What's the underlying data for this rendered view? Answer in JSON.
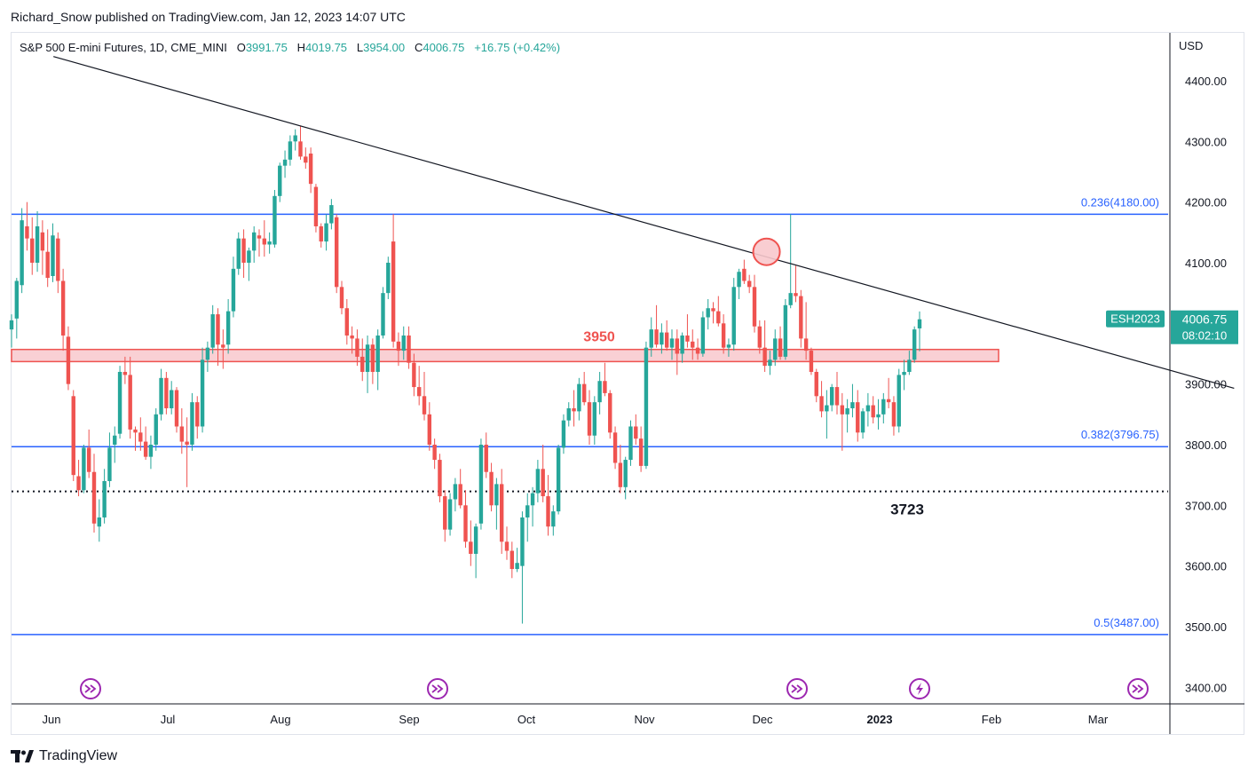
{
  "header": {
    "publisher": "Richard_Snow published on TradingView.com, Jan 12, 2023 14:07 UTC"
  },
  "legend": {
    "symbol": "S&P 500 E-mini Futures, 1D, CME_MINI",
    "open_label": "O",
    "open": "3991.75",
    "high_label": "H",
    "high": "4019.75",
    "low_label": "L",
    "low": "3954.00",
    "close_label": "C",
    "close": "4006.75",
    "change": "+16.75 (+0.42%)"
  },
  "footer": {
    "brand": "TradingView"
  },
  "colors": {
    "up": "#26a69a",
    "down": "#ef5350",
    "level_line": "#2962ff",
    "zone_fill": "#f8c8cc",
    "zone_border": "#ef5350",
    "trendline": "#131722",
    "event_icon": "#9c27b0",
    "price_tag": "#26a69a"
  },
  "chart_data": {
    "type": "candlestick",
    "currency": "USD",
    "ylim": [
      3350,
      4460
    ],
    "y_ticks": [
      "3400.00",
      "3500.00",
      "3600.00",
      "3700.00",
      "3800.00",
      "3900.00",
      "4000.00",
      "4100.00",
      "4200.00",
      "4300.00",
      "4400.00"
    ],
    "x_ticks": [
      "Jun",
      "Jul",
      "Aug",
      "Sep",
      "Oct",
      "Nov",
      "Dec",
      "2023",
      "Feb",
      "Mar"
    ],
    "last_price": {
      "symbol": "ESH2023",
      "value": "4006.75",
      "countdown": "08:02:10"
    },
    "fib_levels": [
      {
        "label": "0.236(4180.00)",
        "value": 4180.0
      },
      {
        "label": "0.382(3796.75)",
        "value": 3796.75
      },
      {
        "label": "0.5(3487.00)",
        "value": 3487.0
      }
    ],
    "support_zone": {
      "label": "3950",
      "low": 3937,
      "high": 3957
    },
    "dotted_level": {
      "label": "3723",
      "value": 3723
    },
    "trendline": {
      "from": [
        "2022-05-31",
        4440
      ],
      "to": [
        "2023-03-30",
        3893
      ]
    },
    "marker_circle": {
      "date": "2022-11-30",
      "value": 4118
    },
    "event_icons": [
      "dividend",
      "dividend",
      "dividend",
      "earnings",
      "dividend"
    ],
    "candles": [
      [
        3990,
        4015,
        3960,
        4005
      ],
      [
        4008,
        4075,
        3975,
        4070
      ],
      [
        4063,
        4190,
        4050,
        4170
      ],
      [
        4160,
        4200,
        4120,
        4140
      ],
      [
        4140,
        4175,
        4080,
        4100
      ],
      [
        4100,
        4185,
        4085,
        4160
      ],
      [
        4150,
        4170,
        4080,
        4120
      ],
      [
        4118,
        4155,
        4060,
        4075
      ],
      [
        4078,
        4165,
        4068,
        4145
      ],
      [
        4140,
        4150,
        4050,
        4070
      ],
      [
        4070,
        4090,
        3955,
        3980
      ],
      [
        3978,
        3995,
        3890,
        3900
      ],
      [
        3880,
        3890,
        3740,
        3750
      ],
      [
        3748,
        3775,
        3715,
        3725
      ],
      [
        3725,
        3800,
        3720,
        3795
      ],
      [
        3795,
        3825,
        3745,
        3755
      ],
      [
        3755,
        3785,
        3655,
        3670
      ],
      [
        3665,
        3710,
        3640,
        3680
      ],
      [
        3680,
        3760,
        3670,
        3740
      ],
      [
        3740,
        3820,
        3730,
        3795
      ],
      [
        3800,
        3830,
        3770,
        3815
      ],
      [
        3818,
        3930,
        3810,
        3920
      ],
      [
        3920,
        3945,
        3900,
        3915
      ],
      [
        3915,
        3945,
        3810,
        3825
      ],
      [
        3825,
        3830,
        3790,
        3820
      ],
      [
        3820,
        3845,
        3790,
        3805
      ],
      [
        3805,
        3830,
        3775,
        3780
      ],
      [
        3780,
        3815,
        3760,
        3800
      ],
      [
        3800,
        3860,
        3790,
        3850
      ],
      [
        3850,
        3925,
        3840,
        3910
      ],
      [
        3910,
        3920,
        3850,
        3860
      ],
      [
        3860,
        3905,
        3850,
        3890
      ],
      [
        3890,
        3895,
        3820,
        3830
      ],
      [
        3830,
        3860,
        3785,
        3805
      ],
      [
        3805,
        3845,
        3730,
        3800
      ],
      [
        3800,
        3885,
        3790,
        3870
      ],
      [
        3870,
        3880,
        3810,
        3830
      ],
      [
        3830,
        3960,
        3820,
        3940
      ],
      [
        3940,
        3970,
        3920,
        3960
      ],
      [
        3960,
        4030,
        3950,
        4015
      ],
      [
        4015,
        4025,
        3930,
        3965
      ],
      [
        3965,
        3990,
        3925,
        3960
      ],
      [
        3965,
        4040,
        3950,
        4020
      ],
      [
        4020,
        4110,
        4010,
        4090
      ],
      [
        4090,
        4150,
        4080,
        4140
      ],
      [
        4140,
        4155,
        4075,
        4100
      ],
      [
        4100,
        4125,
        4070,
        4120
      ],
      [
        4120,
        4160,
        4100,
        4150
      ],
      [
        4145,
        4155,
        4110,
        4140
      ],
      [
        4140,
        4170,
        4110,
        4130
      ],
      [
        4130,
        4150,
        4115,
        4135
      ],
      [
        4130,
        4220,
        4125,
        4210
      ],
      [
        4210,
        4265,
        4200,
        4260
      ],
      [
        4260,
        4285,
        4240,
        4270
      ],
      [
        4270,
        4310,
        4260,
        4300
      ],
      [
        4300,
        4320,
        4285,
        4310
      ],
      [
        4300,
        4325,
        4270,
        4275
      ],
      [
        4275,
        4290,
        4255,
        4265
      ],
      [
        4280,
        4290,
        4215,
        4230
      ],
      [
        4225,
        4230,
        4150,
        4160
      ],
      [
        4160,
        4165,
        4125,
        4135
      ],
      [
        4135,
        4180,
        4120,
        4165
      ],
      [
        4165,
        4205,
        4155,
        4195
      ],
      [
        4175,
        4180,
        4050,
        4060
      ],
      [
        4060,
        4070,
        4015,
        4025
      ],
      [
        4025,
        4040,
        3965,
        3980
      ],
      [
        3980,
        3995,
        3950,
        3975
      ],
      [
        3975,
        3990,
        3930,
        3945
      ],
      [
        3945,
        3975,
        3905,
        3920
      ],
      [
        3920,
        3980,
        3885,
        3965
      ],
      [
        3965,
        3975,
        3900,
        3920
      ],
      [
        3920,
        3990,
        3890,
        3980
      ],
      [
        3980,
        4060,
        3975,
        4050
      ],
      [
        4050,
        4110,
        4040,
        4100
      ],
      [
        4135,
        4180,
        3960,
        3970
      ],
      [
        3970,
        3985,
        3930,
        3955
      ],
      [
        3955,
        3995,
        3940,
        3980
      ],
      [
        3980,
        3995,
        3925,
        3935
      ],
      [
        3935,
        3950,
        3880,
        3895
      ],
      [
        3895,
        3930,
        3865,
        3880
      ],
      [
        3880,
        3920,
        3840,
        3850
      ],
      [
        3850,
        3870,
        3790,
        3800
      ],
      [
        3800,
        3810,
        3760,
        3775
      ],
      [
        3775,
        3785,
        3705,
        3715
      ],
      [
        3715,
        3725,
        3640,
        3660
      ],
      [
        3660,
        3720,
        3650,
        3710
      ],
      [
        3710,
        3745,
        3690,
        3735
      ],
      [
        3735,
        3760,
        3695,
        3700
      ],
      [
        3700,
        3725,
        3630,
        3640
      ],
      [
        3640,
        3675,
        3600,
        3620
      ],
      [
        3620,
        3670,
        3580,
        3665
      ],
      [
        3670,
        3810,
        3660,
        3800
      ],
      [
        3800,
        3820,
        3745,
        3755
      ],
      [
        3755,
        3770,
        3690,
        3700
      ],
      [
        3700,
        3745,
        3660,
        3735
      ],
      [
        3735,
        3760,
        3620,
        3640
      ],
      [
        3640,
        3665,
        3610,
        3625
      ],
      [
        3625,
        3640,
        3580,
        3595
      ],
      [
        3595,
        3630,
        3590,
        3605
      ],
      [
        3600,
        3690,
        3505,
        3680
      ],
      [
        3680,
        3720,
        3640,
        3700
      ],
      [
        3700,
        3730,
        3665,
        3720
      ],
      [
        3720,
        3775,
        3705,
        3760
      ],
      [
        3760,
        3800,
        3705,
        3715
      ],
      [
        3715,
        3750,
        3650,
        3665
      ],
      [
        3665,
        3700,
        3650,
        3690
      ],
      [
        3690,
        3800,
        3685,
        3795
      ],
      [
        3795,
        3850,
        3785,
        3840
      ],
      [
        3840,
        3870,
        3830,
        3860
      ],
      [
        3860,
        3890,
        3830,
        3855
      ],
      [
        3855,
        3910,
        3840,
        3900
      ],
      [
        3900,
        3920,
        3865,
        3870
      ],
      [
        3870,
        3890,
        3800,
        3815
      ],
      [
        3815,
        3880,
        3800,
        3870
      ],
      [
        3870,
        3920,
        3850,
        3905
      ],
      [
        3905,
        3935,
        3880,
        3885
      ],
      [
        3885,
        3890,
        3810,
        3820
      ],
      [
        3820,
        3830,
        3760,
        3770
      ],
      [
        3770,
        3800,
        3720,
        3730
      ],
      [
        3730,
        3780,
        3710,
        3775
      ],
      [
        3775,
        3840,
        3765,
        3830
      ],
      [
        3830,
        3850,
        3800,
        3810
      ],
      [
        3810,
        3830,
        3755,
        3765
      ],
      [
        3765,
        3970,
        3760,
        3960
      ],
      [
        3960,
        4010,
        3945,
        3990
      ],
      [
        3990,
        4030,
        3960,
        3965
      ],
      [
        3965,
        4000,
        3950,
        3985
      ],
      [
        3985,
        4005,
        3955,
        3960
      ],
      [
        3960,
        3990,
        3940,
        3975
      ],
      [
        3975,
        3990,
        3915,
        3950
      ],
      [
        3950,
        3985,
        3935,
        3980
      ],
      [
        3980,
        4015,
        3960,
        3970
      ],
      [
        3970,
        3990,
        3940,
        3960
      ],
      [
        3960,
        3975,
        3940,
        3950
      ],
      [
        3950,
        4020,
        3945,
        4010
      ],
      [
        4010,
        4040,
        3990,
        4025
      ],
      [
        4025,
        4035,
        4000,
        4020
      ],
      [
        4020,
        4045,
        3995,
        4000
      ],
      [
        4000,
        4015,
        3950,
        3960
      ],
      [
        3960,
        3975,
        3945,
        3965
      ],
      [
        3965,
        4075,
        3955,
        4060
      ],
      [
        4060,
        4090,
        4040,
        4085
      ],
      [
        4090,
        4105,
        4065,
        4070
      ],
      [
        4070,
        4080,
        4050,
        4060
      ],
      [
        4060,
        4080,
        3985,
        3995
      ],
      [
        3995,
        4005,
        3950,
        3960
      ],
      [
        3960,
        4005,
        3920,
        3930
      ],
      [
        3930,
        3955,
        3915,
        3940
      ],
      [
        3940,
        3990,
        3930,
        3975
      ],
      [
        3975,
        3995,
        3940,
        3945
      ],
      [
        3945,
        4040,
        3940,
        4030
      ],
      [
        4030,
        4180,
        4025,
        4050
      ],
      [
        4050,
        4095,
        4035,
        4045
      ],
      [
        4045,
        4055,
        3960,
        3975
      ],
      [
        3975,
        4035,
        3940,
        3955
      ],
      [
        3955,
        3960,
        3915,
        3920
      ],
      [
        3920,
        3925,
        3870,
        3880
      ],
      [
        3880,
        3905,
        3845,
        3855
      ],
      [
        3855,
        3890,
        3810,
        3865
      ],
      [
        3865,
        3900,
        3855,
        3895
      ],
      [
        3895,
        3920,
        3850,
        3865
      ],
      [
        3865,
        3885,
        3790,
        3850
      ],
      [
        3850,
        3875,
        3820,
        3860
      ],
      [
        3860,
        3900,
        3845,
        3870
      ],
      [
        3870,
        3890,
        3805,
        3820
      ],
      [
        3820,
        3860,
        3810,
        3855
      ],
      [
        3855,
        3885,
        3830,
        3865
      ],
      [
        3865,
        3880,
        3835,
        3845
      ],
      [
        3845,
        3875,
        3825,
        3850
      ],
      [
        3850,
        3885,
        3835,
        3875
      ],
      [
        3875,
        3910,
        3860,
        3870
      ],
      [
        3870,
        3880,
        3815,
        3830
      ],
      [
        3830,
        3925,
        3820,
        3915
      ],
      [
        3915,
        3940,
        3890,
        3920
      ],
      [
        3920,
        3955,
        3915,
        3940
      ],
      [
        3940,
        3995,
        3935,
        3990
      ],
      [
        3991.75,
        4019.75,
        3954,
        4006.75
      ]
    ]
  }
}
